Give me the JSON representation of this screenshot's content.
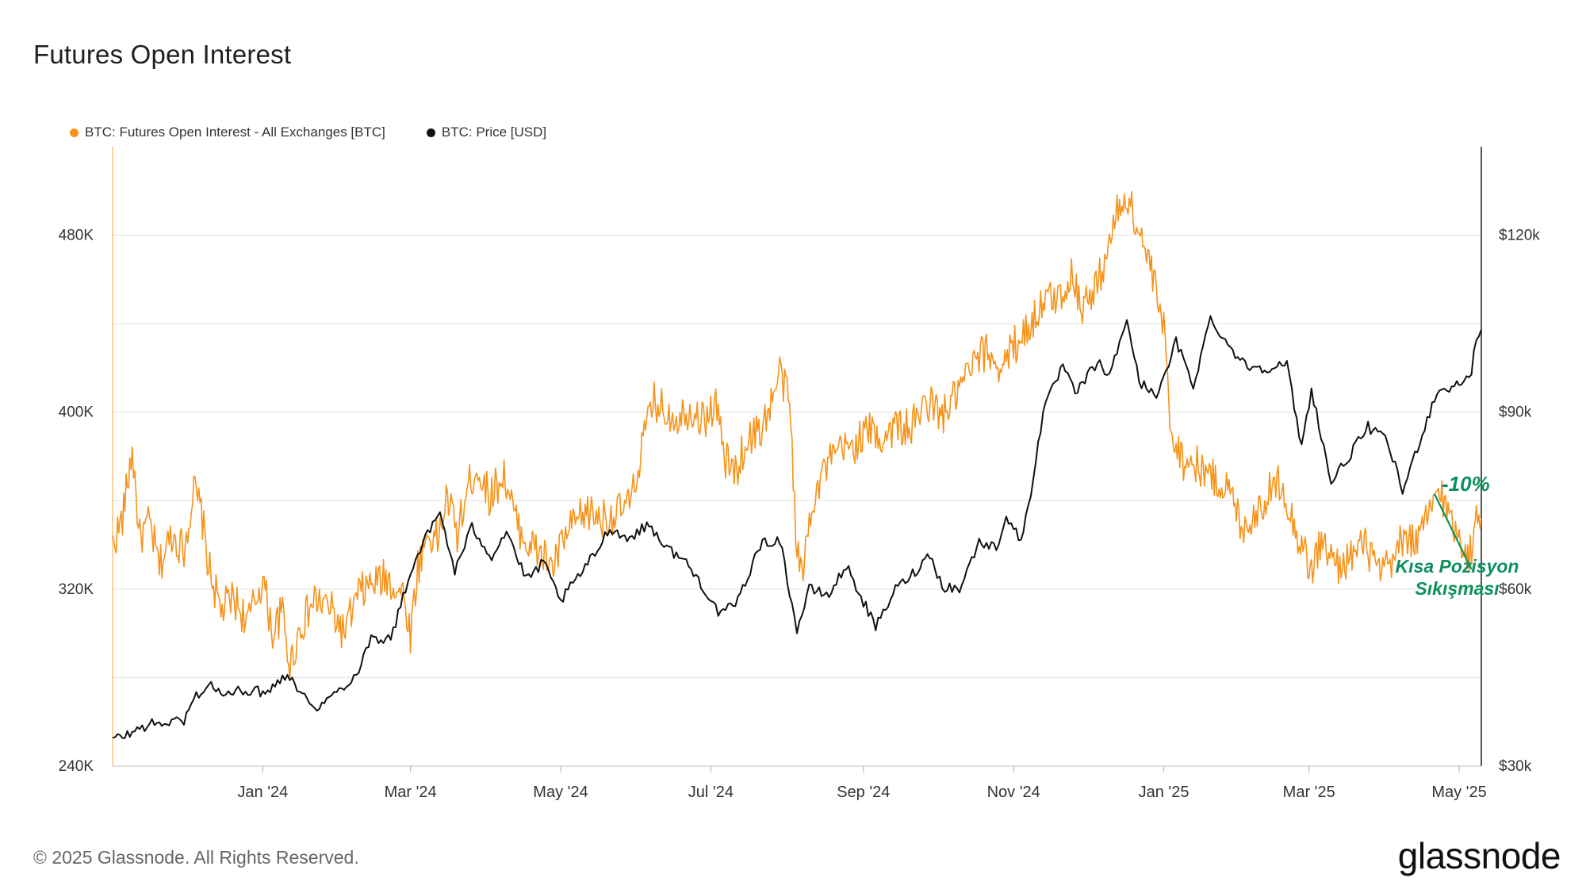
{
  "title": "Futures Open Interest",
  "legend": {
    "oi_label": "BTC: Futures Open Interest - All Exchanges [BTC]",
    "price_label": "BTC: Price [USD]",
    "oi_color": "#f7931a",
    "price_color": "#111111"
  },
  "annotation": {
    "percent": "-10%",
    "line1": "Kısa Pozisyon",
    "line2": "Sıkışması",
    "color": "#0e8f5d"
  },
  "footer": "© 2025 Glassnode. All Rights Reserved.",
  "brand": "glassnode",
  "chart_data": {
    "type": "line",
    "title": "Futures Open Interest",
    "x_range": [
      "2023-11-01",
      "2025-05-10"
    ],
    "x_ticks": [
      {
        "date": "2024-01-01",
        "label": "Jan '24"
      },
      {
        "date": "2024-03-01",
        "label": "Mar '24"
      },
      {
        "date": "2024-05-01",
        "label": "May '24"
      },
      {
        "date": "2024-07-01",
        "label": "Jul '24"
      },
      {
        "date": "2024-09-01",
        "label": "Sep '24"
      },
      {
        "date": "2024-11-01",
        "label": "Nov '24"
      },
      {
        "date": "2025-01-01",
        "label": "Jan '25"
      },
      {
        "date": "2025-03-01",
        "label": "Mar '25"
      },
      {
        "date": "2025-05-01",
        "label": "May '25"
      }
    ],
    "left_axis": {
      "min": 240000,
      "max": 520000,
      "ticks": [
        240000,
        280000,
        320000,
        360000,
        400000,
        440000,
        480000
      ],
      "tick_labels": {
        "240000": "240K",
        "320000": "320K",
        "400000": "400K",
        "480000": "480K"
      }
    },
    "right_axis": {
      "min": 30000,
      "max": 135000,
      "tick_labels": {
        "30000": "$30k",
        "60000": "$60k",
        "90000": "$90k",
        "120000": "$120k"
      }
    },
    "series": [
      {
        "name": "BTC: Futures Open Interest - All Exchanges [BTC]",
        "axis": "left",
        "color": "#f7931a",
        "points": [
          [
            "2023-11-01",
            340000
          ],
          [
            "2023-11-05",
            352000
          ],
          [
            "2023-11-09",
            383000
          ],
          [
            "2023-11-12",
            343000
          ],
          [
            "2023-11-16",
            350000
          ],
          [
            "2023-11-20",
            330000
          ],
          [
            "2023-11-25",
            345000
          ],
          [
            "2023-11-30",
            338000
          ],
          [
            "2023-12-04",
            365000
          ],
          [
            "2023-12-07",
            355000
          ],
          [
            "2023-12-10",
            330000
          ],
          [
            "2023-12-15",
            310000
          ],
          [
            "2023-12-20",
            316000
          ],
          [
            "2023-12-26",
            305000
          ],
          [
            "2024-01-01",
            325000
          ],
          [
            "2024-01-05",
            300000
          ],
          [
            "2024-01-09",
            310000
          ],
          [
            "2024-01-12",
            285000
          ],
          [
            "2024-01-16",
            302000
          ],
          [
            "2024-01-22",
            315000
          ],
          [
            "2024-01-28",
            312000
          ],
          [
            "2024-02-03",
            300000
          ],
          [
            "2024-02-09",
            318000
          ],
          [
            "2024-02-14",
            322000
          ],
          [
            "2024-02-20",
            325000
          ],
          [
            "2024-02-27",
            318000
          ],
          [
            "2024-03-01",
            300000
          ],
          [
            "2024-03-04",
            330000
          ],
          [
            "2024-03-08",
            345000
          ],
          [
            "2024-03-12",
            342000
          ],
          [
            "2024-03-16",
            362000
          ],
          [
            "2024-03-20",
            345000
          ],
          [
            "2024-03-25",
            368000
          ],
          [
            "2024-03-28",
            375000
          ],
          [
            "2024-04-02",
            362000
          ],
          [
            "2024-04-08",
            372000
          ],
          [
            "2024-04-13",
            350000
          ],
          [
            "2024-04-18",
            340000
          ],
          [
            "2024-04-23",
            336000
          ],
          [
            "2024-04-28",
            330000
          ],
          [
            "2024-05-02",
            342000
          ],
          [
            "2024-05-07",
            350000
          ],
          [
            "2024-05-12",
            355000
          ],
          [
            "2024-05-18",
            352000
          ],
          [
            "2024-05-24",
            354000
          ],
          [
            "2024-05-30",
            360000
          ],
          [
            "2024-06-03",
            385000
          ],
          [
            "2024-06-08",
            405000
          ],
          [
            "2024-06-13",
            400000
          ],
          [
            "2024-06-18",
            398000
          ],
          [
            "2024-06-23",
            402000
          ],
          [
            "2024-06-28",
            396000
          ],
          [
            "2024-07-03",
            404000
          ],
          [
            "2024-07-07",
            378000
          ],
          [
            "2024-07-11",
            373000
          ],
          [
            "2024-07-16",
            388000
          ],
          [
            "2024-07-21",
            392000
          ],
          [
            "2024-07-25",
            402000
          ],
          [
            "2024-07-29",
            418000
          ],
          [
            "2024-08-02",
            405000
          ],
          [
            "2024-08-05",
            338000
          ],
          [
            "2024-08-07",
            325000
          ],
          [
            "2024-08-11",
            360000
          ],
          [
            "2024-08-16",
            374000
          ],
          [
            "2024-08-22",
            382000
          ],
          [
            "2024-08-28",
            385000
          ],
          [
            "2024-09-03",
            392000
          ],
          [
            "2024-09-08",
            388000
          ],
          [
            "2024-09-14",
            394000
          ],
          [
            "2024-09-20",
            392000
          ],
          [
            "2024-09-27",
            405000
          ],
          [
            "2024-10-03",
            398000
          ],
          [
            "2024-10-09",
            408000
          ],
          [
            "2024-10-15",
            420000
          ],
          [
            "2024-10-21",
            428000
          ],
          [
            "2024-10-27",
            420000
          ],
          [
            "2024-11-01",
            430000
          ],
          [
            "2024-11-07",
            438000
          ],
          [
            "2024-11-13",
            450000
          ],
          [
            "2024-11-19",
            452000
          ],
          [
            "2024-11-25",
            462000
          ],
          [
            "2024-11-29",
            448000
          ],
          [
            "2024-12-04",
            455000
          ],
          [
            "2024-12-09",
            472000
          ],
          [
            "2024-12-13",
            490000
          ],
          [
            "2024-12-17",
            498000
          ],
          [
            "2024-12-21",
            485000
          ],
          [
            "2024-12-26",
            468000
          ],
          [
            "2025-01-01",
            438000
          ],
          [
            "2025-01-04",
            392000
          ],
          [
            "2025-01-09",
            378000
          ],
          [
            "2025-01-15",
            376000
          ],
          [
            "2025-01-21",
            370000
          ],
          [
            "2025-01-27",
            366000
          ],
          [
            "2025-02-02",
            348000
          ],
          [
            "2025-02-08",
            355000
          ],
          [
            "2025-02-13",
            364000
          ],
          [
            "2025-02-18",
            370000
          ],
          [
            "2025-02-21",
            355000
          ],
          [
            "2025-02-25",
            343000
          ],
          [
            "2025-03-02",
            328000
          ],
          [
            "2025-03-06",
            342000
          ],
          [
            "2025-03-12",
            330000
          ],
          [
            "2025-03-18",
            335000
          ],
          [
            "2025-03-24",
            340000
          ],
          [
            "2025-03-30",
            326000
          ],
          [
            "2025-04-04",
            332000
          ],
          [
            "2025-04-09",
            345000
          ],
          [
            "2025-04-14",
            340000
          ],
          [
            "2025-04-19",
            355000
          ],
          [
            "2025-04-23",
            366000
          ],
          [
            "2025-04-27",
            352000
          ],
          [
            "2025-05-01",
            345000
          ],
          [
            "2025-05-05",
            334000
          ],
          [
            "2025-05-08",
            350000
          ],
          [
            "2025-05-10",
            352000
          ]
        ]
      },
      {
        "name": "BTC: Price [USD]",
        "axis": "right",
        "color": "#111111",
        "points": [
          [
            "2023-11-01",
            34500
          ],
          [
            "2023-11-08",
            35500
          ],
          [
            "2023-11-15",
            37000
          ],
          [
            "2023-11-22",
            37300
          ],
          [
            "2023-11-30",
            37800
          ],
          [
            "2023-12-05",
            42000
          ],
          [
            "2023-12-10",
            43800
          ],
          [
            "2023-12-17",
            42000
          ],
          [
            "2023-12-25",
            43000
          ],
          [
            "2024-01-01",
            42500
          ],
          [
            "2024-01-08",
            44500
          ],
          [
            "2024-01-11",
            46000
          ],
          [
            "2024-01-18",
            41500
          ],
          [
            "2024-01-24",
            40000
          ],
          [
            "2024-01-31",
            42600
          ],
          [
            "2024-02-08",
            45500
          ],
          [
            "2024-02-14",
            51800
          ],
          [
            "2024-02-22",
            51500
          ],
          [
            "2024-02-29",
            61500
          ],
          [
            "2024-03-05",
            67000
          ],
          [
            "2024-03-13",
            73000
          ],
          [
            "2024-03-19",
            63000
          ],
          [
            "2024-03-26",
            70500
          ],
          [
            "2024-04-03",
            65500
          ],
          [
            "2024-04-09",
            70000
          ],
          [
            "2024-04-17",
            61500
          ],
          [
            "2024-04-24",
            64500
          ],
          [
            "2024-05-01",
            58000
          ],
          [
            "2024-05-08",
            62000
          ],
          [
            "2024-05-15",
            66000
          ],
          [
            "2024-05-21",
            70500
          ],
          [
            "2024-05-28",
            68500
          ],
          [
            "2024-06-06",
            71000
          ],
          [
            "2024-06-13",
            67000
          ],
          [
            "2024-06-20",
            65000
          ],
          [
            "2024-06-27",
            61000
          ],
          [
            "2024-07-05",
            55500
          ],
          [
            "2024-07-12",
            58000
          ],
          [
            "2024-07-21",
            67500
          ],
          [
            "2024-07-29",
            68500
          ],
          [
            "2024-08-05",
            53000
          ],
          [
            "2024-08-10",
            60000
          ],
          [
            "2024-08-18",
            59000
          ],
          [
            "2024-08-25",
            64000
          ],
          [
            "2024-09-06",
            53500
          ],
          [
            "2024-09-14",
            60000
          ],
          [
            "2024-09-22",
            63000
          ],
          [
            "2024-09-28",
            66000
          ],
          [
            "2024-10-03",
            60500
          ],
          [
            "2024-10-10",
            60000
          ],
          [
            "2024-10-18",
            68000
          ],
          [
            "2024-10-25",
            67000
          ],
          [
            "2024-10-29",
            72500
          ],
          [
            "2024-11-04",
            68000
          ],
          [
            "2024-11-08",
            76500
          ],
          [
            "2024-11-13",
            90000
          ],
          [
            "2024-11-21",
            98000
          ],
          [
            "2024-11-26",
            93000
          ],
          [
            "2024-12-05",
            98500
          ],
          [
            "2024-12-10",
            96000
          ],
          [
            "2024-12-17",
            106000
          ],
          [
            "2024-12-22",
            95000
          ],
          [
            "2024-12-30",
            93000
          ],
          [
            "2025-01-06",
            102000
          ],
          [
            "2025-01-13",
            94500
          ],
          [
            "2025-01-20",
            106000
          ],
          [
            "2025-01-27",
            101500
          ],
          [
            "2025-02-03",
            98000
          ],
          [
            "2025-02-10",
            97500
          ],
          [
            "2025-02-20",
            98000
          ],
          [
            "2025-02-26",
            84000
          ],
          [
            "2025-03-02",
            94000
          ],
          [
            "2025-03-10",
            78000
          ],
          [
            "2025-03-18",
            83000
          ],
          [
            "2025-03-25",
            87500
          ],
          [
            "2025-04-02",
            85000
          ],
          [
            "2025-04-08",
            76500
          ],
          [
            "2025-04-14",
            84000
          ],
          [
            "2025-04-22",
            93500
          ],
          [
            "2025-04-30",
            94500
          ],
          [
            "2025-05-06",
            96500
          ],
          [
            "2025-05-08",
            103000
          ],
          [
            "2025-05-10",
            104000
          ]
        ]
      }
    ]
  }
}
